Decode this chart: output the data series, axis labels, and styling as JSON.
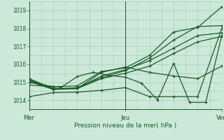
{
  "title": "",
  "xlabel": "Pression niveau de la mer( hPa )",
  "bg_color": "#cce8d8",
  "grid_color": "#aacfbc",
  "line_color": "#1a5c28",
  "xlim": [
    0,
    48
  ],
  "ylim": [
    1013.5,
    1019.5
  ],
  "yticks": [
    1014,
    1015,
    1016,
    1017,
    1018,
    1019
  ],
  "xtick_positions": [
    0,
    24,
    48
  ],
  "xtick_labels": [
    "Mer",
    "Jeu",
    "Ven"
  ],
  "series": [
    {
      "x": [
        0,
        6,
        12,
        18,
        24,
        30,
        36,
        42,
        48
      ],
      "y": [
        1014.85,
        1014.75,
        1014.8,
        1015.6,
        1015.8,
        1016.5,
        1017.8,
        1018.05,
        1019.2
      ]
    },
    {
      "x": [
        0,
        6,
        12,
        18,
        24,
        30,
        36,
        42,
        48
      ],
      "y": [
        1014.2,
        1014.42,
        1014.45,
        1014.55,
        1014.7,
        1014.2,
        1014.2,
        1014.2,
        1018.0
      ]
    },
    {
      "x": [
        0,
        6,
        12,
        18,
        24,
        30,
        36,
        42,
        48
      ],
      "y": [
        1015.05,
        1014.6,
        1014.65,
        1015.55,
        1015.85,
        1015.55,
        1015.35,
        1015.2,
        1015.9
      ]
    },
    {
      "x": [
        0,
        6,
        12,
        18,
        24,
        30,
        36,
        42,
        48
      ],
      "y": [
        1015.15,
        1014.65,
        1014.65,
        1015.35,
        1015.7,
        1016.2,
        1016.9,
        1017.6,
        1017.75
      ]
    },
    {
      "x": [
        0,
        6,
        12,
        18,
        24,
        30,
        36,
        42,
        48
      ],
      "y": [
        1015.2,
        1014.65,
        1014.65,
        1015.2,
        1015.5,
        1015.9,
        1016.6,
        1017.25,
        1017.55
      ]
    },
    {
      "x": [
        0,
        6,
        12,
        18,
        24,
        30,
        36,
        42,
        48
      ],
      "y": [
        1015.1,
        1014.62,
        1014.7,
        1015.25,
        1015.65,
        1016.35,
        1017.35,
        1018.1,
        1018.15
      ]
    },
    {
      "x": [
        0,
        4,
        8,
        12,
        16,
        20,
        24,
        28,
        32,
        36,
        40,
        44,
        48
      ],
      "y": [
        1015.0,
        1014.82,
        1014.72,
        1015.32,
        1015.55,
        1015.38,
        1015.28,
        1014.95,
        1014.02,
        1016.05,
        1013.88,
        1013.88,
        1017.6
      ]
    }
  ],
  "vlines": [
    0,
    24,
    48
  ],
  "marker": "+",
  "minor_xticks": [
    0,
    3,
    6,
    9,
    12,
    15,
    18,
    21,
    24,
    27,
    30,
    33,
    36,
    39,
    42,
    45,
    48
  ],
  "minor_yticks": [
    1013.5,
    1014.0,
    1014.5,
    1015.0,
    1015.5,
    1016.0,
    1016.5,
    1017.0,
    1017.5,
    1018.0,
    1018.5,
    1019.0,
    1019.5
  ]
}
